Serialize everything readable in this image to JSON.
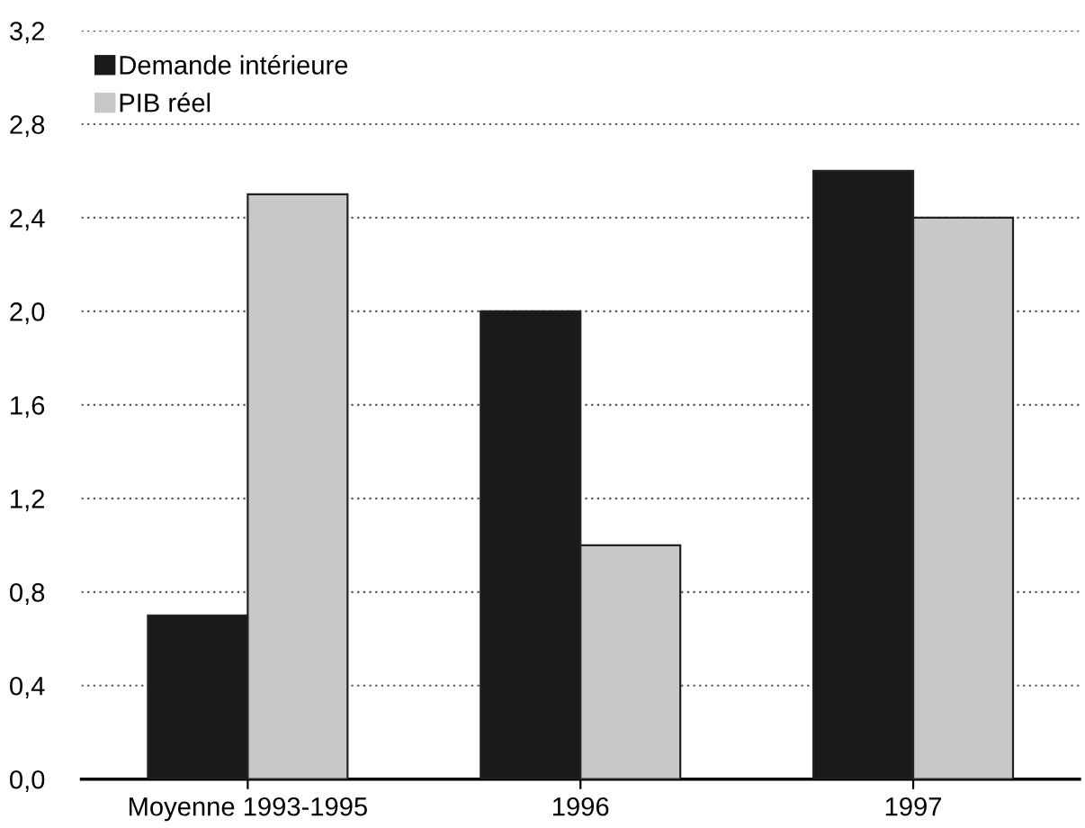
{
  "chart_data": {
    "type": "bar",
    "categories": [
      "Moyenne 1993-1995",
      "1996",
      "1997"
    ],
    "series": [
      {
        "name": "Demande intérieure",
        "color": "#1a1a1a",
        "values": [
          0.7,
          2.0,
          2.6
        ]
      },
      {
        "name": "PIB réel",
        "color": "#c8c8c8",
        "values": [
          2.5,
          1.0,
          2.4
        ]
      }
    ],
    "ylim": [
      0,
      3.2
    ],
    "yticks": [
      {
        "value": 0,
        "label": "0,0"
      },
      {
        "value": 0.4,
        "label": "0,4"
      },
      {
        "value": 0.8,
        "label": "0,8"
      },
      {
        "value": 1.2,
        "label": "1,2"
      },
      {
        "value": 1.6,
        "label": "1,6"
      },
      {
        "value": 2.0,
        "label": "2,0"
      },
      {
        "value": 2.4,
        "label": "2,4"
      },
      {
        "value": 2.8,
        "label": "2,8"
      },
      {
        "value": 3.2,
        "label": "3,2"
      }
    ],
    "grid": "y",
    "legend": "top left"
  }
}
